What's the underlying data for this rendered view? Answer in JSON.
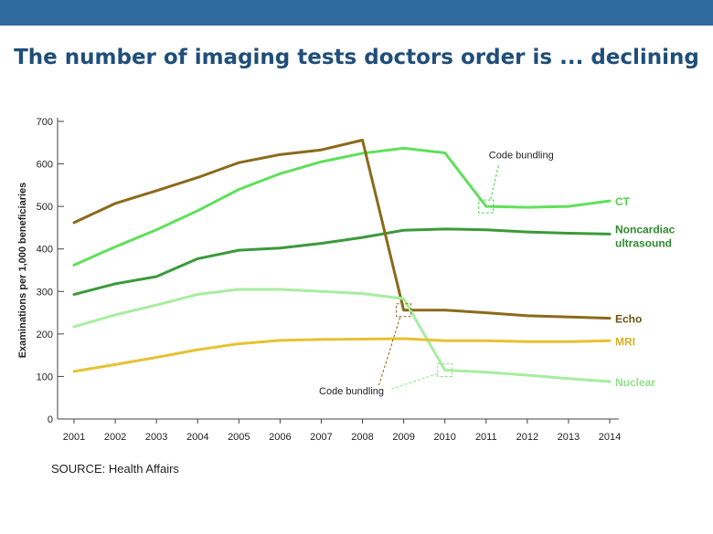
{
  "header": {
    "title": "The number of imaging tests doctors order is ... declining",
    "bar_color": "#2f6b9e"
  },
  "footer": {
    "source": "SOURCE: Health Affairs"
  },
  "chart_data": {
    "type": "line",
    "title": "The number of imaging tests doctors order is ... declining",
    "xlabel": "",
    "ylabel": "Examinations per 1,000 beneficiaries",
    "ylim": [
      0,
      700
    ],
    "y_ticks": [
      0,
      100,
      200,
      300,
      400,
      500,
      600,
      700
    ],
    "x": [
      2001,
      2002,
      2003,
      2004,
      2005,
      2006,
      2007,
      2008,
      2009,
      2010,
      2011,
      2012,
      2013,
      2014
    ],
    "grid": false,
    "series": [
      {
        "name": "CT",
        "color": "#5fe05a",
        "values": [
          362,
          405,
          445,
          490,
          540,
          577,
          605,
          625,
          637,
          626,
          500,
          498,
          500,
          513
        ]
      },
      {
        "name": "Noncardiac ultrasound",
        "color": "#3a9a3a",
        "values": [
          293,
          318,
          335,
          377,
          397,
          402,
          413,
          427,
          444,
          447,
          445,
          440,
          437,
          435
        ]
      },
      {
        "name": "Echo",
        "color": "#8a6a1a",
        "values": [
          462,
          507,
          537,
          568,
          603,
          622,
          633,
          656,
          256,
          256,
          250,
          243,
          240,
          237
        ]
      },
      {
        "name": "Nuclear",
        "color": "#a7eda1",
        "values": [
          217,
          245,
          268,
          293,
          305,
          305,
          300,
          295,
          283,
          115,
          110,
          103,
          95,
          88
        ]
      },
      {
        "name": "MRI",
        "color": "#e6c232",
        "values": [
          112,
          128,
          145,
          163,
          177,
          185,
          187,
          188,
          189,
          184,
          184,
          182,
          182,
          184
        ]
      }
    ],
    "annotations": [
      {
        "text": "Code bundling",
        "year": 2011,
        "value": 500,
        "series": "CT"
      },
      {
        "text": "Code bundling",
        "targets": [
          {
            "year": 2009,
            "value": 256,
            "series": "Echo"
          },
          {
            "year": 2010,
            "value": 115,
            "series": "Nuclear"
          }
        ]
      }
    ]
  }
}
